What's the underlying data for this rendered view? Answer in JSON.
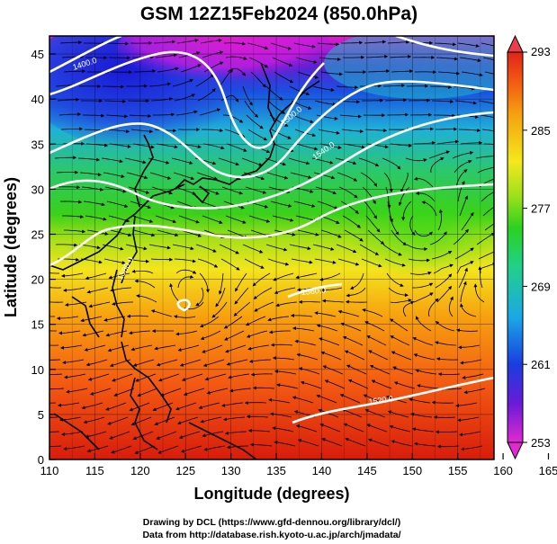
{
  "title": "GSM 12Z15Feb2024 (850.0hPa)",
  "x_axis": {
    "label": "Longitude (degrees)",
    "ticks": [
      "110",
      "115",
      "120",
      "125",
      "130",
      "135",
      "140",
      "145",
      "150",
      "155",
      "160",
      "165"
    ]
  },
  "y_axis": {
    "label": "Latitude  (degrees)",
    "ticks": [
      "0",
      "5",
      "10",
      "15",
      "20",
      "25",
      "30",
      "35",
      "40",
      "45"
    ]
  },
  "colorbar": {
    "labels": [
      "293",
      "285",
      "277",
      "269",
      "261",
      "253"
    ]
  },
  "contour_labels": [
    "1400.0",
    "1520.0",
    "1560.0",
    "1540.0",
    "1500.0",
    "1580.0"
  ],
  "credits": {
    "line1": "Drawing by DCL (https://www.gfd-dennou.org/library/dcl/)",
    "line2": "Data from http://database.rish.kyoto-u.ac.jp/arch/jmadata/"
  }
}
